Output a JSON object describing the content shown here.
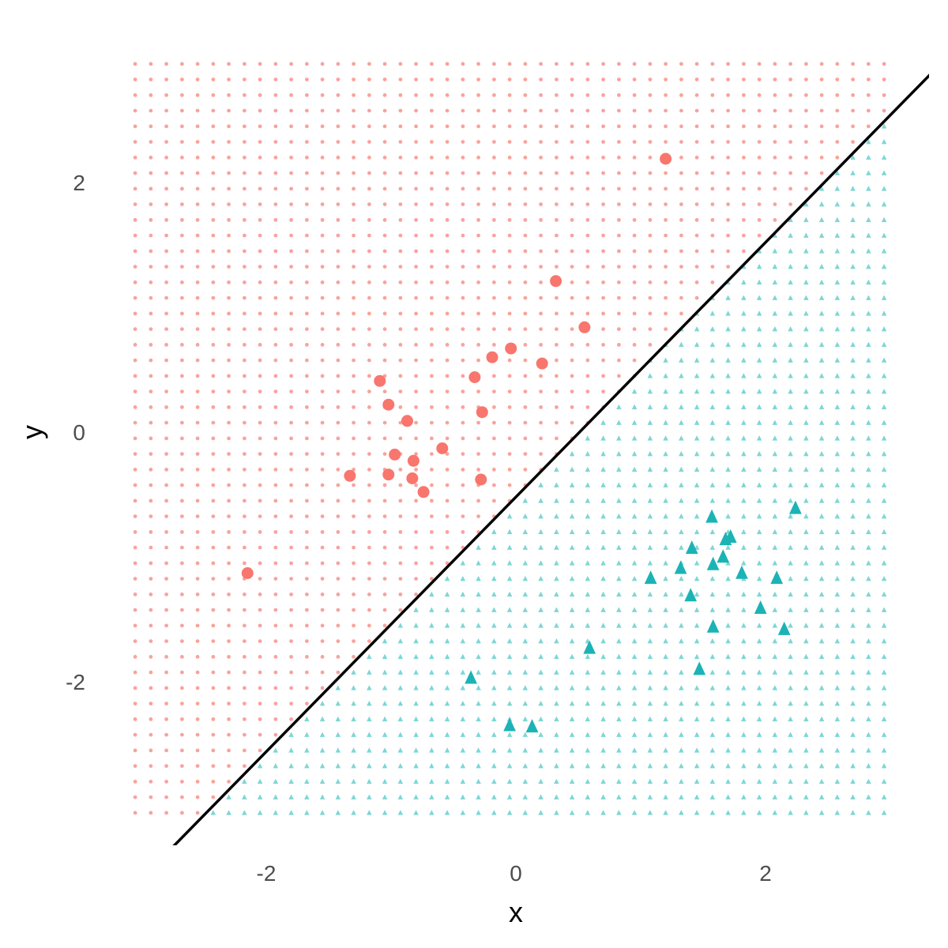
{
  "chart_data": {
    "type": "scatter",
    "title": "",
    "xlabel": "x",
    "ylabel": "y",
    "xlim": [
      -3.3,
      3.3
    ],
    "ylim": [
      -3.3,
      3.3
    ],
    "x_ticks": [
      -2,
      0,
      2
    ],
    "y_ticks": [
      -2,
      0,
      2
    ],
    "x_tick_labels": [
      "-2",
      "0",
      "2"
    ],
    "y_tick_labels": [
      "-2",
      "0",
      "2"
    ],
    "grid": false,
    "legend": "none",
    "background_grid": {
      "x_start": -3.05,
      "x_end": 3.05,
      "step": 0.125,
      "y_start": -3.05,
      "y_end": 3.0
    },
    "decision_boundary": {
      "slope": 1.02,
      "intercept": -0.52
    },
    "colors": {
      "class_a": "#F8766D",
      "class_a_light": "#F8A39C",
      "class_b": "#1CB3B6",
      "class_b_light": "#7ED6D6",
      "boundary": "#000000"
    },
    "series": [
      {
        "marker": "circle",
        "points": [
          [
            1.2,
            2.19
          ],
          [
            0.32,
            1.21
          ],
          [
            0.55,
            0.84
          ],
          [
            -0.04,
            0.67
          ],
          [
            -0.19,
            0.6
          ],
          [
            0.21,
            0.55
          ],
          [
            -1.09,
            0.41
          ],
          [
            -0.33,
            0.44
          ],
          [
            -1.02,
            0.22
          ],
          [
            -0.27,
            0.16
          ],
          [
            -0.87,
            0.09
          ],
          [
            -0.59,
            -0.13
          ],
          [
            -0.97,
            -0.18
          ],
          [
            -0.82,
            -0.23
          ],
          [
            -1.33,
            -0.35
          ],
          [
            -1.02,
            -0.34
          ],
          [
            -0.83,
            -0.37
          ],
          [
            -0.28,
            -0.38
          ],
          [
            -0.74,
            -0.48
          ],
          [
            -2.15,
            -1.13
          ]
        ]
      },
      {
        "marker": "triangle",
        "points": [
          [
            2.24,
            -0.61
          ],
          [
            1.57,
            -0.68
          ],
          [
            1.72,
            -0.84
          ],
          [
            1.68,
            -0.86
          ],
          [
            1.41,
            -0.93
          ],
          [
            1.66,
            -1.0
          ],
          [
            1.58,
            -1.06
          ],
          [
            1.32,
            -1.09
          ],
          [
            1.81,
            -1.13
          ],
          [
            1.08,
            -1.17
          ],
          [
            2.09,
            -1.17
          ],
          [
            1.4,
            -1.31
          ],
          [
            1.96,
            -1.41
          ],
          [
            1.58,
            -1.56
          ],
          [
            2.15,
            -1.58
          ],
          [
            0.59,
            -1.73
          ],
          [
            1.47,
            -1.9
          ],
          [
            -0.36,
            -1.97
          ],
          [
            -0.05,
            -2.35
          ],
          [
            0.13,
            -2.36
          ]
        ]
      }
    ]
  }
}
